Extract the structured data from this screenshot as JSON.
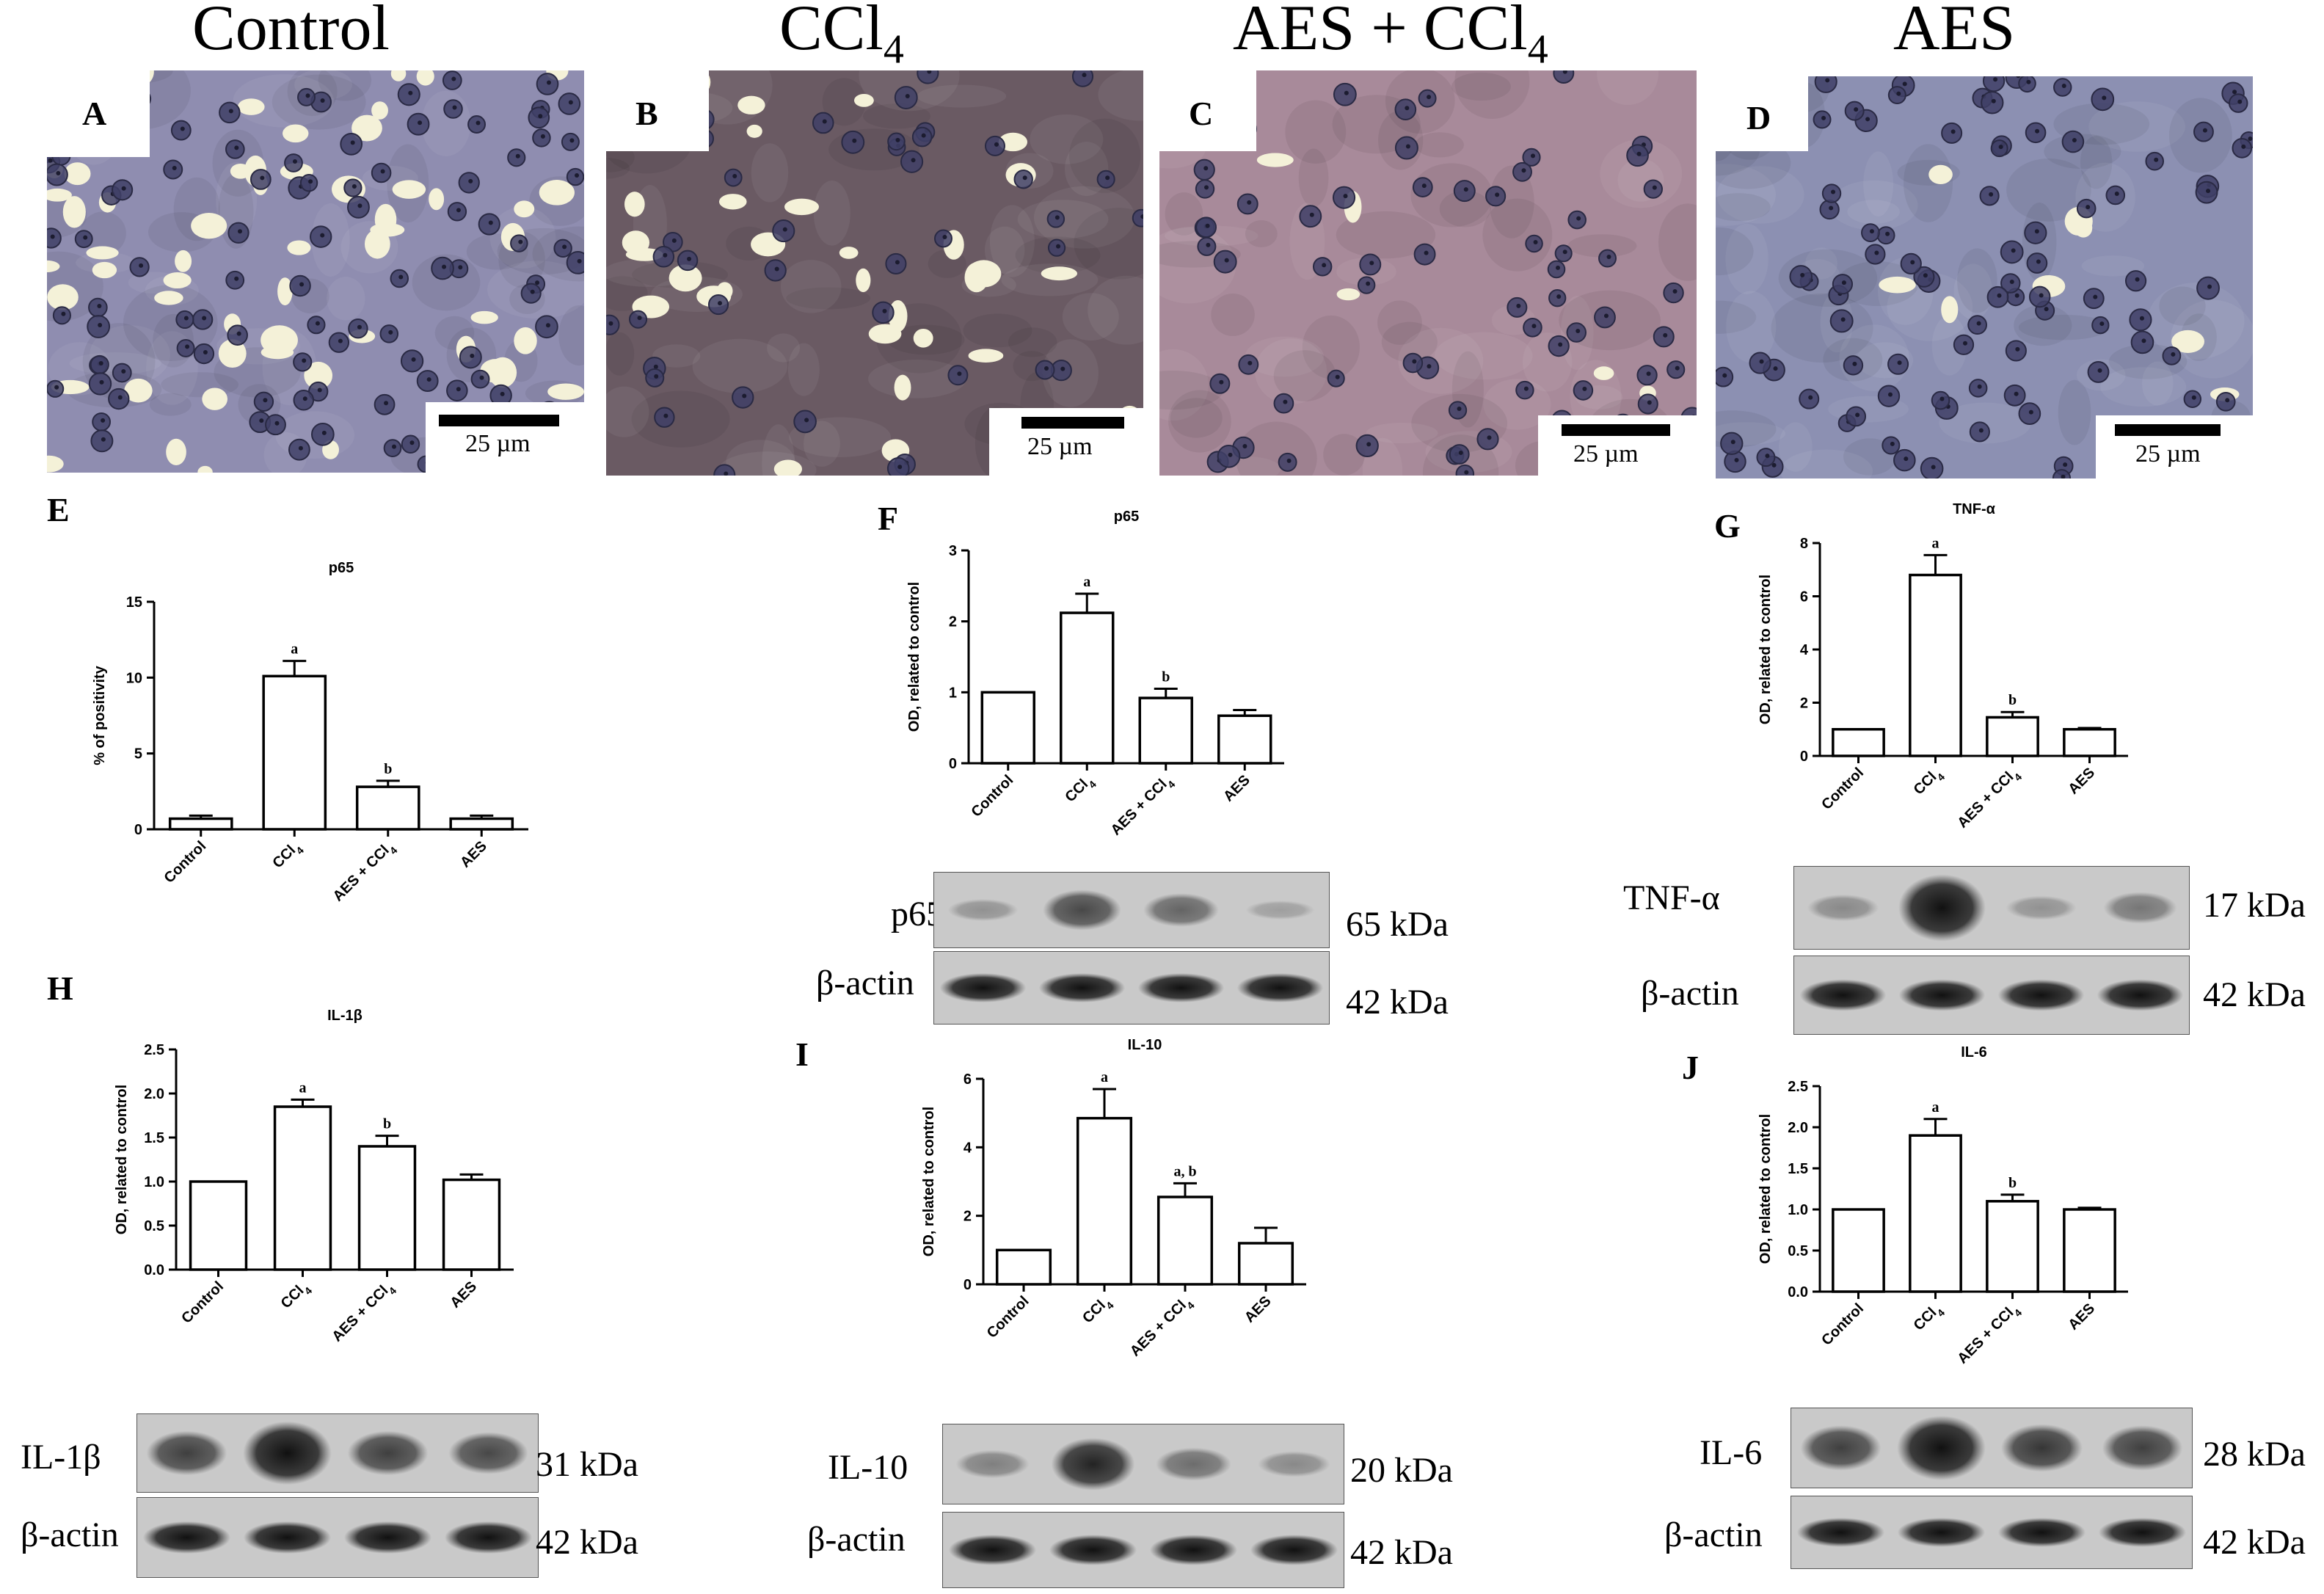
{
  "titles": {
    "control": "Control",
    "ccl4_base": "CCl",
    "ccl4_sub": "4",
    "aes_ccl4_base": "AES + CCl",
    "aes_ccl4_sub": "4",
    "aes": "AES"
  },
  "panels": {
    "A": "A",
    "B": "B",
    "C": "C",
    "D": "D",
    "E": "E",
    "F": "F",
    "G": "G",
    "H": "H",
    "I": "I",
    "J": "J"
  },
  "scale_bar_label": "25 µm",
  "colors": {
    "tissue_control": "#8f8db0",
    "tissue_ccl4": "#6a5a63",
    "tissue_aes_ccl4": "#a88a9a",
    "tissue_aes": "#8c90b2",
    "nucleus": "#3f3f66",
    "vacuole": "#f4f1d8",
    "blot_bg": "#c9c9c9",
    "band": "#222222"
  },
  "blots": {
    "p65": {
      "protein": "p65",
      "protein_kda": "65 kDa",
      "actin": "β-actin",
      "actin_kda": "42 kDa",
      "band_intensity": [
        0.15,
        0.55,
        0.4,
        0.08
      ]
    },
    "tnf": {
      "protein": "TNF-α",
      "protein_kda": "17 kDa",
      "actin": "β-actin",
      "actin_kda": "42 kDa",
      "band_intensity": [
        0.2,
        1.0,
        0.15,
        0.3
      ]
    },
    "il1b": {
      "protein": "IL-1β",
      "protein_kda": "31 kDa",
      "actin": "β-actin",
      "actin_kda": "42 kDa",
      "band_intensity": [
        0.6,
        1.0,
        0.6,
        0.55
      ]
    },
    "il10": {
      "protein": "IL-10",
      "protein_kda": "20 kDa",
      "actin": "β-actin",
      "actin_kda": "42 kDa",
      "band_intensity": [
        0.25,
        0.75,
        0.35,
        0.2
      ]
    },
    "il6": {
      "protein": "IL-6",
      "protein_kda": "28 kDa",
      "actin": "β-actin",
      "actin_kda": "42 kDa",
      "band_intensity": [
        0.6,
        1.0,
        0.65,
        0.6
      ]
    }
  },
  "chart_data": [
    {
      "id": "E",
      "type": "bar",
      "title": "p65",
      "ylabel": "% of positivity",
      "categories": [
        "Control",
        "CCl4",
        "AES + CCl4",
        "AES"
      ],
      "values": [
        0.7,
        10.1,
        2.8,
        0.7
      ],
      "errors": [
        0.2,
        1.0,
        0.4,
        0.2
      ],
      "annotations": [
        "",
        "a",
        "b",
        ""
      ],
      "ylim": [
        0,
        15
      ],
      "yticks": [
        0,
        5,
        10,
        15
      ],
      "ytick_labels": [
        "0",
        "5",
        "10",
        "15"
      ]
    },
    {
      "id": "F",
      "type": "bar",
      "title": "p65",
      "ylabel": "OD, related to control",
      "categories": [
        "Control",
        "CCl4",
        "AES + CCl4",
        "AES"
      ],
      "values": [
        1.0,
        2.12,
        0.92,
        0.67
      ],
      "errors": [
        0,
        0.27,
        0.13,
        0.08
      ],
      "annotations": [
        "",
        "a",
        "b",
        ""
      ],
      "ylim": [
        0,
        3
      ],
      "yticks": [
        0,
        1,
        2,
        3
      ],
      "ytick_labels": [
        "0",
        "1",
        "2",
        "3"
      ]
    },
    {
      "id": "G",
      "type": "bar",
      "title": "TNF-α",
      "ylabel": "OD, related to control",
      "categories": [
        "Control",
        "CCl4",
        "AES + CCl4",
        "AES"
      ],
      "values": [
        1.0,
        6.8,
        1.45,
        1.0
      ],
      "errors": [
        0,
        0.75,
        0.2,
        0.05
      ],
      "annotations": [
        "",
        "a",
        "b",
        ""
      ],
      "ylim": [
        0,
        8
      ],
      "yticks": [
        0,
        2,
        4,
        6,
        8
      ],
      "ytick_labels": [
        "0",
        "2",
        "4",
        "6",
        "8"
      ]
    },
    {
      "id": "H",
      "type": "bar",
      "title": "IL-1β",
      "ylabel": "OD, related to control",
      "categories": [
        "Control",
        "CCl4",
        "AES + CCl4",
        "AES"
      ],
      "values": [
        1.0,
        1.85,
        1.4,
        1.02
      ],
      "errors": [
        0,
        0.08,
        0.12,
        0.06
      ],
      "annotations": [
        "",
        "a",
        "b",
        ""
      ],
      "ylim": [
        0,
        2.5
      ],
      "yticks": [
        0,
        0.5,
        1.0,
        1.5,
        2.0,
        2.5
      ],
      "ytick_labels": [
        "0.0",
        "0.5",
        "1.0",
        "1.5",
        "2.0",
        "2.5"
      ]
    },
    {
      "id": "I",
      "type": "bar",
      "title": "IL-10",
      "ylabel": "OD, related to control",
      "categories": [
        "Control",
        "CCl4",
        "AES + CCl4",
        "AES"
      ],
      "values": [
        1.0,
        4.85,
        2.55,
        1.2
      ],
      "errors": [
        0,
        0.85,
        0.4,
        0.45
      ],
      "annotations": [
        "",
        "a",
        "a, b",
        ""
      ],
      "ylim": [
        0,
        6
      ],
      "yticks": [
        0,
        2,
        4,
        6
      ],
      "ytick_labels": [
        "0",
        "2",
        "4",
        "6"
      ]
    },
    {
      "id": "J",
      "type": "bar",
      "title": "IL-6",
      "ylabel": "OD, related to control",
      "categories": [
        "Control",
        "CCl4",
        "AES + CCl4",
        "AES"
      ],
      "values": [
        1.0,
        1.9,
        1.1,
        1.0
      ],
      "errors": [
        0,
        0.2,
        0.08,
        0.02
      ],
      "annotations": [
        "",
        "a",
        "b",
        ""
      ],
      "ylim": [
        0,
        2.5
      ],
      "yticks": [
        0,
        0.5,
        1.0,
        1.5,
        2.0,
        2.5
      ],
      "ytick_labels": [
        "0.0",
        "0.5",
        "1.0",
        "1.5",
        "2.0",
        "2.5"
      ]
    }
  ]
}
